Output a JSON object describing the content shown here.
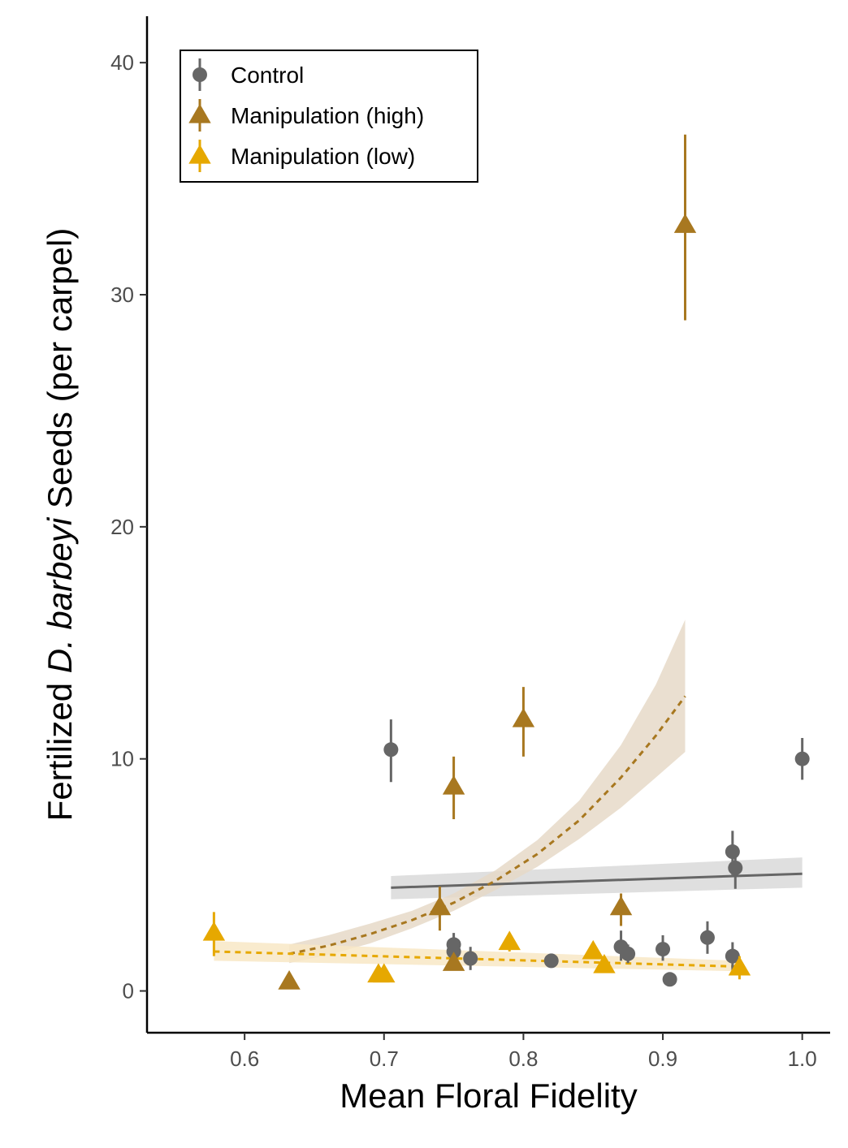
{
  "chart_data": {
    "type": "scatter",
    "xlabel": "Mean Floral Fidelity",
    "ylabel": {
      "prefix": "Fertilized ",
      "italic": "D. barbeyi",
      "suffix": " Seeds (per carpel)"
    },
    "xlim": [
      0.53,
      1.02
    ],
    "ylim": [
      -1.8,
      42
    ],
    "x_ticks": [
      0.6,
      0.7,
      0.8,
      0.9,
      1.0
    ],
    "x_tick_labels": [
      "0.6",
      "0.7",
      "0.8",
      "0.9",
      "1.0"
    ],
    "y_ticks": [
      0,
      10,
      20,
      30,
      40
    ],
    "y_tick_labels": [
      "0",
      "10",
      "20",
      "30",
      "40"
    ],
    "grid": false,
    "legend_position": "top-left",
    "series": [
      {
        "name": "Control",
        "marker": "circle",
        "color": "#666666",
        "line_style": "solid",
        "points": [
          {
            "x": 0.705,
            "y": 10.4,
            "err": [
              9.0,
              11.7
            ]
          },
          {
            "x": 0.75,
            "y": 2.0,
            "err": [
              1.5,
              2.5
            ]
          },
          {
            "x": 0.75,
            "y": 1.7,
            "err": [
              1.2,
              2.2
            ]
          },
          {
            "x": 0.762,
            "y": 1.4,
            "err": [
              0.9,
              1.9
            ]
          },
          {
            "x": 0.82,
            "y": 1.3,
            "err": [
              1.1,
              1.5
            ]
          },
          {
            "x": 0.87,
            "y": 1.9,
            "err": [
              1.3,
              2.6
            ]
          },
          {
            "x": 0.875,
            "y": 1.6,
            "err": [
              1.2,
              2.0
            ]
          },
          {
            "x": 0.9,
            "y": 1.8,
            "err": [
              1.3,
              2.4
            ]
          },
          {
            "x": 0.905,
            "y": 0.5,
            "err": [
              0.4,
              0.6
            ]
          },
          {
            "x": 0.932,
            "y": 2.3,
            "err": [
              1.6,
              3.0
            ]
          },
          {
            "x": 0.95,
            "y": 6.0,
            "err": [
              5.0,
              6.9
            ]
          },
          {
            "x": 0.952,
            "y": 5.3,
            "err": [
              4.4,
              6.2
            ]
          },
          {
            "x": 0.95,
            "y": 1.5,
            "err": [
              0.9,
              2.1
            ]
          },
          {
            "x": 1.0,
            "y": 10.0,
            "err": [
              9.1,
              10.9
            ]
          }
        ],
        "fit": {
          "x": [
            0.705,
            1.0
          ],
          "y": [
            4.45,
            5.05
          ],
          "lower": [
            3.95,
            4.45
          ],
          "upper": [
            4.95,
            5.75
          ]
        }
      },
      {
        "name": "Manipulation (high)",
        "marker": "triangle",
        "color": "#A87820",
        "line_style": "dashed",
        "points": [
          {
            "x": 0.632,
            "y": 0.4,
            "err": [
              0.3,
              0.5
            ]
          },
          {
            "x": 0.74,
            "y": 3.6,
            "err": [
              2.6,
              4.5
            ]
          },
          {
            "x": 0.75,
            "y": 8.8,
            "err": [
              7.4,
              10.1
            ]
          },
          {
            "x": 0.75,
            "y": 1.2,
            "err": [
              0.9,
              1.5
            ]
          },
          {
            "x": 0.8,
            "y": 11.7,
            "err": [
              10.1,
              13.1
            ]
          },
          {
            "x": 0.87,
            "y": 3.6,
            "err": [
              2.8,
              4.2
            ]
          },
          {
            "x": 0.916,
            "y": 33.0,
            "err": [
              28.9,
              36.9
            ]
          }
        ],
        "fit": {
          "x": [
            0.632,
            0.66,
            0.69,
            0.72,
            0.75,
            0.78,
            0.81,
            0.84,
            0.87,
            0.895,
            0.916
          ],
          "y": [
            1.6,
            1.95,
            2.45,
            3.05,
            3.8,
            4.75,
            5.9,
            7.35,
            9.2,
            11.0,
            12.7
          ],
          "lower": [
            1.2,
            1.55,
            2.05,
            2.7,
            3.45,
            4.35,
            5.35,
            6.55,
            7.9,
            9.2,
            10.3
          ],
          "upper": [
            2.0,
            2.4,
            2.9,
            3.45,
            4.2,
            5.2,
            6.5,
            8.2,
            10.6,
            13.2,
            16.0
          ]
        }
      },
      {
        "name": "Manipulation (low)",
        "marker": "triangle",
        "color": "#E6A800",
        "line_style": "dashed",
        "points": [
          {
            "x": 0.578,
            "y": 2.5,
            "err": [
              1.5,
              3.4
            ]
          },
          {
            "x": 0.696,
            "y": 0.7,
            "err": [
              0.5,
              0.9
            ]
          },
          {
            "x": 0.7,
            "y": 0.7,
            "err": [
              0.5,
              0.9
            ]
          },
          {
            "x": 0.79,
            "y": 2.1,
            "err": [
              1.7,
              2.5
            ]
          },
          {
            "x": 0.85,
            "y": 1.7,
            "err": [
              1.4,
              2.0
            ]
          },
          {
            "x": 0.858,
            "y": 1.1,
            "err": [
              0.8,
              1.4
            ]
          },
          {
            "x": 0.955,
            "y": 1.0,
            "err": [
              0.5,
              1.5
            ]
          }
        ],
        "fit": {
          "x": [
            0.578,
            0.955
          ],
          "y": [
            1.7,
            1.05
          ],
          "lower": [
            1.3,
            0.85
          ],
          "upper": [
            2.15,
            1.3
          ]
        }
      }
    ]
  }
}
